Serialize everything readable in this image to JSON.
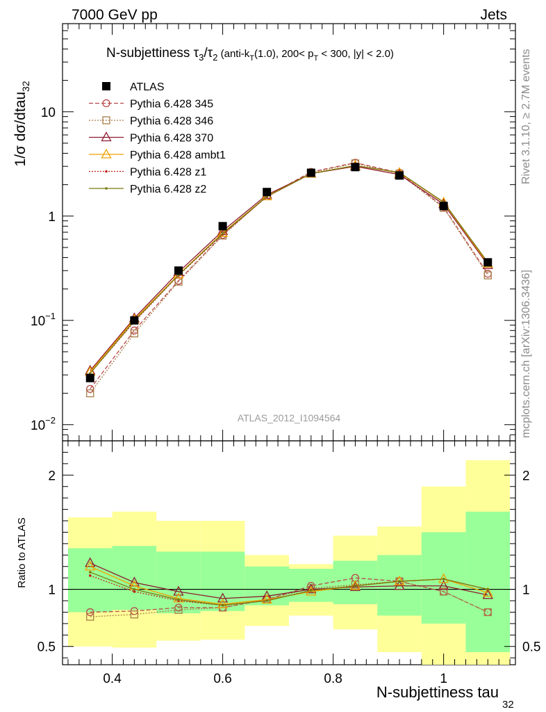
{
  "header": {
    "energy": "7000 GeV pp",
    "process": "Jets",
    "plot_title": "N-subjettiness τ3/τ2 (anti-kT(1.0), 200< pT < 300, |y| < 2.0)",
    "rivet_note": "Rivet 3.1.10, ≥ 2.7M events",
    "site_note": "mcplots.cern.ch [arXiv:1306.3436]",
    "analysis_id": "ATLAS_2012_I1094564"
  },
  "colors": {
    "atlas": "#000000",
    "p345": "#b84848",
    "p346": "#a87c48",
    "p370": "#8c1a2e",
    "ambt1": "#f0a000",
    "z1": "#c02018",
    "z2": "#7a7a10",
    "band_outer": "#ffff99",
    "band_inner": "#99ff99"
  },
  "chart_data": [
    {
      "type": "line",
      "name": "main",
      "ylabel": "1/σ dσ/dtau32",
      "yscale": "log",
      "ylim": [
        0.007,
        70
      ],
      "xlim": [
        0.31,
        1.13
      ],
      "yticks": [
        {
          "v": 0.01,
          "base": "10",
          "exp": "−2"
        },
        {
          "v": 0.1,
          "base": "10",
          "exp": "−1"
        },
        {
          "v": 1,
          "base": "1",
          "exp": ""
        },
        {
          "v": 10,
          "base": "10",
          "exp": ""
        }
      ],
      "x": [
        0.36,
        0.44,
        0.52,
        0.6,
        0.68,
        0.76,
        0.84,
        0.92,
        1.0,
        1.08
      ],
      "atlas": {
        "name": "ATLAS",
        "values": [
          0.028,
          0.1,
          0.3,
          0.8,
          1.7,
          2.6,
          2.95,
          2.45,
          1.25,
          0.36
        ]
      },
      "series": [
        {
          "name": "Pythia 6.428 345",
          "key": "p345",
          "marker": "circle",
          "dash": "6,3",
          "values": [
            0.022,
            0.08,
            0.24,
            0.66,
            1.55,
            2.65,
            3.25,
            2.6,
            1.22,
            0.28
          ]
        },
        {
          "name": "Pythia 6.428 346",
          "key": "p346",
          "marker": "square",
          "dash": "2,2",
          "values": [
            0.02,
            0.075,
            0.235,
            0.65,
            1.55,
            2.6,
            3.2,
            2.55,
            1.2,
            0.27
          ]
        },
        {
          "name": "Pythia 6.428 370",
          "key": "p370",
          "marker": "triangle",
          "dash": "",
          "values": [
            0.033,
            0.105,
            0.29,
            0.72,
            1.6,
            2.55,
            3.0,
            2.5,
            1.3,
            0.34
          ]
        },
        {
          "name": "Pythia 6.428 ambt1",
          "key": "ambt1",
          "marker": "triangle",
          "dash": "",
          "values": [
            0.032,
            0.102,
            0.275,
            0.69,
            1.55,
            2.55,
            3.05,
            2.6,
            1.35,
            0.35
          ]
        },
        {
          "name": "Pythia 6.428 z1",
          "key": "z1",
          "marker": "dot",
          "dash": "2,2",
          "values": [
            0.031,
            0.097,
            0.27,
            0.67,
            1.53,
            2.55,
            3.05,
            2.62,
            1.36,
            0.36
          ]
        },
        {
          "name": "Pythia 6.428 z2",
          "key": "z2",
          "marker": "dot",
          "dash": "",
          "values": [
            0.031,
            0.099,
            0.272,
            0.68,
            1.54,
            2.55,
            3.05,
            2.62,
            1.36,
            0.36
          ]
        }
      ]
    },
    {
      "type": "line",
      "name": "ratio",
      "ylabel": "Ratio to ATLAS",
      "xlabel": "N-subjettiness tau32",
      "ylim": [
        0.34,
        2.3
      ],
      "xlim": [
        0.31,
        1.13
      ],
      "yticks": [
        0.5,
        1,
        2
      ],
      "xticks": [
        0.4,
        0.6,
        0.8,
        1.0
      ],
      "bands": {
        "edges": [
          0.32,
          0.4,
          0.48,
          0.56,
          0.64,
          0.72,
          0.8,
          0.88,
          0.96,
          1.04,
          1.12
        ],
        "outer_low": [
          0.5,
          0.49,
          0.55,
          0.56,
          0.68,
          0.77,
          0.65,
          0.45,
          0.32,
          0.32
        ],
        "outer_high": [
          1.63,
          1.68,
          1.6,
          1.6,
          1.3,
          1.22,
          1.47,
          1.55,
          1.9,
          2.13
        ],
        "inner_low": [
          0.8,
          0.82,
          0.79,
          0.81,
          0.86,
          0.89,
          0.87,
          0.77,
          0.7,
          0.45
        ],
        "inner_high": [
          1.36,
          1.38,
          1.33,
          1.33,
          1.2,
          1.18,
          1.25,
          1.3,
          1.5,
          1.68
        ]
      },
      "series": [
        {
          "key": "p345",
          "values": [
            0.8,
            0.81,
            0.84,
            0.84,
            0.91,
            1.03,
            1.1,
            1.07,
            0.98,
            0.8
          ]
        },
        {
          "key": "p346",
          "values": [
            0.76,
            0.78,
            0.82,
            0.84,
            0.91,
            1.01,
            1.04,
            1.07,
            0.98,
            0.8
          ]
        },
        {
          "key": "p370",
          "values": [
            1.23,
            1.06,
            0.98,
            0.92,
            0.94,
            1.0,
            1.02,
            1.03,
            1.03,
            0.95
          ]
        },
        {
          "key": "ambt1",
          "values": [
            1.2,
            1.03,
            0.92,
            0.87,
            0.91,
            0.98,
            1.03,
            1.07,
            1.09,
            0.97
          ]
        },
        {
          "key": "z1",
          "values": [
            1.12,
            0.98,
            0.9,
            0.86,
            0.9,
            0.99,
            1.03,
            1.07,
            1.09,
            1.0
          ]
        },
        {
          "key": "z2",
          "values": [
            1.15,
            1.0,
            0.91,
            0.86,
            0.9,
            0.99,
            1.03,
            1.07,
            1.09,
            1.0
          ]
        }
      ]
    }
  ]
}
